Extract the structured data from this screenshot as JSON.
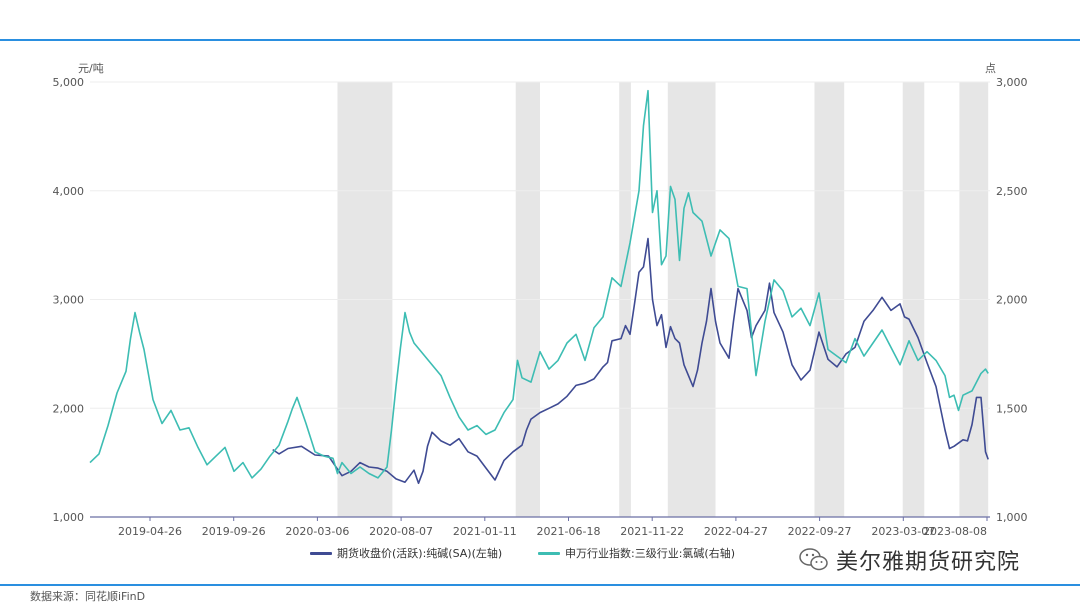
{
  "chart_data": {
    "type": "line",
    "title": "",
    "left_axis_unit": "元/吨",
    "right_axis_unit": "点",
    "left_ylim": [
      1000,
      5000
    ],
    "right_ylim": [
      1000,
      3000
    ],
    "left_yticks": [
      "1,000",
      "2,000",
      "3,000",
      "4,000",
      "5,000"
    ],
    "right_yticks": [
      "1,000",
      "1,500",
      "2,000",
      "2,500",
      "3,000"
    ],
    "x_tick_labels": [
      "2019-04-26",
      "2019-09-26",
      "2020-03-06",
      "2020-08-07",
      "2021-01-11",
      "2021-06-18",
      "2021-11-22",
      "2022-04-27",
      "2022-09-27",
      "2023-03-07",
      "2023-08-08"
    ],
    "x_range": [
      0,
      1
    ],
    "shaded_periods": [
      [
        0.275,
        0.336
      ],
      [
        0.473,
        0.5
      ],
      [
        0.588,
        0.601
      ],
      [
        0.642,
        0.695
      ],
      [
        0.805,
        0.838
      ],
      [
        0.903,
        0.927
      ],
      [
        0.966,
        0.998
      ]
    ],
    "grid": true,
    "series": [
      {
        "name": "期货收盘价(活跃):纯碱(SA)(左轴)",
        "axis": "left",
        "color": "#3f4b93",
        "points": [
          [
            0.203,
            1620
          ],
          [
            0.21,
            1580
          ],
          [
            0.22,
            1630
          ],
          [
            0.235,
            1650
          ],
          [
            0.25,
            1570
          ],
          [
            0.265,
            1560
          ],
          [
            0.28,
            1380
          ],
          [
            0.29,
            1420
          ],
          [
            0.3,
            1500
          ],
          [
            0.31,
            1460
          ],
          [
            0.32,
            1450
          ],
          [
            0.33,
            1420
          ],
          [
            0.34,
            1350
          ],
          [
            0.35,
            1320
          ],
          [
            0.36,
            1430
          ],
          [
            0.365,
            1310
          ],
          [
            0.37,
            1420
          ],
          [
            0.375,
            1650
          ],
          [
            0.38,
            1780
          ],
          [
            0.39,
            1700
          ],
          [
            0.4,
            1660
          ],
          [
            0.41,
            1720
          ],
          [
            0.42,
            1600
          ],
          [
            0.43,
            1560
          ],
          [
            0.44,
            1450
          ],
          [
            0.45,
            1340
          ],
          [
            0.46,
            1520
          ],
          [
            0.47,
            1600
          ],
          [
            0.48,
            1660
          ],
          [
            0.485,
            1800
          ],
          [
            0.49,
            1900
          ],
          [
            0.5,
            1960
          ],
          [
            0.51,
            2000
          ],
          [
            0.52,
            2040
          ],
          [
            0.53,
            2110
          ],
          [
            0.54,
            2210
          ],
          [
            0.55,
            2230
          ],
          [
            0.56,
            2270
          ],
          [
            0.57,
            2380
          ],
          [
            0.575,
            2420
          ],
          [
            0.58,
            2620
          ],
          [
            0.59,
            2640
          ],
          [
            0.595,
            2760
          ],
          [
            0.6,
            2680
          ],
          [
            0.605,
            2960
          ],
          [
            0.61,
            3250
          ],
          [
            0.615,
            3300
          ],
          [
            0.62,
            3560
          ],
          [
            0.625,
            3000
          ],
          [
            0.63,
            2760
          ],
          [
            0.635,
            2860
          ],
          [
            0.64,
            2560
          ],
          [
            0.645,
            2750
          ],
          [
            0.65,
            2640
          ],
          [
            0.655,
            2600
          ],
          [
            0.66,
            2400
          ],
          [
            0.67,
            2200
          ],
          [
            0.675,
            2350
          ],
          [
            0.68,
            2600
          ],
          [
            0.685,
            2800
          ],
          [
            0.69,
            3100
          ],
          [
            0.695,
            2800
          ],
          [
            0.7,
            2600
          ],
          [
            0.71,
            2460
          ],
          [
            0.715,
            2800
          ],
          [
            0.72,
            3100
          ],
          [
            0.73,
            2900
          ],
          [
            0.735,
            2650
          ],
          [
            0.74,
            2760
          ],
          [
            0.75,
            2900
          ],
          [
            0.755,
            3150
          ],
          [
            0.76,
            2880
          ],
          [
            0.77,
            2700
          ],
          [
            0.78,
            2400
          ],
          [
            0.79,
            2260
          ],
          [
            0.8,
            2350
          ],
          [
            0.81,
            2700
          ],
          [
            0.82,
            2450
          ],
          [
            0.83,
            2380
          ],
          [
            0.84,
            2500
          ],
          [
            0.85,
            2560
          ],
          [
            0.86,
            2800
          ],
          [
            0.87,
            2900
          ],
          [
            0.88,
            3020
          ],
          [
            0.89,
            2900
          ],
          [
            0.9,
            2960
          ],
          [
            0.905,
            2840
          ],
          [
            0.91,
            2820
          ],
          [
            0.92,
            2650
          ],
          [
            0.93,
            2420
          ],
          [
            0.94,
            2200
          ],
          [
            0.95,
            1800
          ],
          [
            0.955,
            1630
          ],
          [
            0.96,
            1650
          ],
          [
            0.97,
            1710
          ],
          [
            0.975,
            1700
          ],
          [
            0.98,
            1850
          ],
          [
            0.985,
            2100
          ],
          [
            0.99,
            2100
          ],
          [
            0.995,
            1600
          ],
          [
            0.998,
            1530
          ]
        ]
      },
      {
        "name": "申万行业指数:三级行业:氯碱(右轴)",
        "axis": "right",
        "color": "#3dbdb3",
        "points": [
          [
            0.0,
            1250
          ],
          [
            0.01,
            1290
          ],
          [
            0.02,
            1420
          ],
          [
            0.03,
            1570
          ],
          [
            0.04,
            1670
          ],
          [
            0.045,
            1820
          ],
          [
            0.05,
            1940
          ],
          [
            0.055,
            1850
          ],
          [
            0.06,
            1770
          ],
          [
            0.07,
            1540
          ],
          [
            0.08,
            1430
          ],
          [
            0.09,
            1490
          ],
          [
            0.1,
            1400
          ],
          [
            0.11,
            1410
          ],
          [
            0.12,
            1320
          ],
          [
            0.13,
            1240
          ],
          [
            0.14,
            1280
          ],
          [
            0.15,
            1320
          ],
          [
            0.16,
            1210
          ],
          [
            0.17,
            1250
          ],
          [
            0.18,
            1180
          ],
          [
            0.19,
            1220
          ],
          [
            0.2,
            1280
          ],
          [
            0.21,
            1330
          ],
          [
            0.22,
            1440
          ],
          [
            0.225,
            1500
          ],
          [
            0.23,
            1550
          ],
          [
            0.24,
            1430
          ],
          [
            0.25,
            1300
          ],
          [
            0.26,
            1280
          ],
          [
            0.27,
            1270
          ],
          [
            0.275,
            1200
          ],
          [
            0.28,
            1250
          ],
          [
            0.29,
            1200
          ],
          [
            0.3,
            1230
          ],
          [
            0.31,
            1200
          ],
          [
            0.32,
            1180
          ],
          [
            0.33,
            1230
          ],
          [
            0.335,
            1400
          ],
          [
            0.34,
            1600
          ],
          [
            0.345,
            1780
          ],
          [
            0.35,
            1940
          ],
          [
            0.355,
            1850
          ],
          [
            0.36,
            1800
          ],
          [
            0.37,
            1750
          ],
          [
            0.38,
            1700
          ],
          [
            0.39,
            1650
          ],
          [
            0.4,
            1550
          ],
          [
            0.41,
            1460
          ],
          [
            0.42,
            1400
          ],
          [
            0.43,
            1420
          ],
          [
            0.44,
            1380
          ],
          [
            0.45,
            1400
          ],
          [
            0.46,
            1480
          ],
          [
            0.47,
            1540
          ],
          [
            0.475,
            1720
          ],
          [
            0.48,
            1640
          ],
          [
            0.49,
            1620
          ],
          [
            0.5,
            1760
          ],
          [
            0.51,
            1680
          ],
          [
            0.52,
            1720
          ],
          [
            0.53,
            1800
          ],
          [
            0.54,
            1840
          ],
          [
            0.55,
            1720
          ],
          [
            0.56,
            1870
          ],
          [
            0.57,
            1920
          ],
          [
            0.58,
            2100
          ],
          [
            0.59,
            2060
          ],
          [
            0.6,
            2260
          ],
          [
            0.61,
            2500
          ],
          [
            0.615,
            2800
          ],
          [
            0.62,
            2960
          ],
          [
            0.625,
            2400
          ],
          [
            0.63,
            2500
          ],
          [
            0.635,
            2160
          ],
          [
            0.64,
            2200
          ],
          [
            0.645,
            2520
          ],
          [
            0.65,
            2460
          ],
          [
            0.655,
            2180
          ],
          [
            0.66,
            2420
          ],
          [
            0.665,
            2490
          ],
          [
            0.67,
            2400
          ],
          [
            0.68,
            2360
          ],
          [
            0.69,
            2200
          ],
          [
            0.7,
            2320
          ],
          [
            0.71,
            2280
          ],
          [
            0.72,
            2060
          ],
          [
            0.73,
            2050
          ],
          [
            0.74,
            1650
          ],
          [
            0.75,
            1900
          ],
          [
            0.76,
            2090
          ],
          [
            0.77,
            2040
          ],
          [
            0.78,
            1920
          ],
          [
            0.79,
            1960
          ],
          [
            0.8,
            1880
          ],
          [
            0.81,
            2030
          ],
          [
            0.82,
            1770
          ],
          [
            0.83,
            1740
          ],
          [
            0.84,
            1710
          ],
          [
            0.85,
            1820
          ],
          [
            0.86,
            1740
          ],
          [
            0.87,
            1800
          ],
          [
            0.88,
            1860
          ],
          [
            0.89,
            1780
          ],
          [
            0.9,
            1700
          ],
          [
            0.91,
            1810
          ],
          [
            0.92,
            1720
          ],
          [
            0.93,
            1760
          ],
          [
            0.94,
            1720
          ],
          [
            0.95,
            1650
          ],
          [
            0.955,
            1550
          ],
          [
            0.96,
            1560
          ],
          [
            0.965,
            1490
          ],
          [
            0.97,
            1560
          ],
          [
            0.98,
            1580
          ],
          [
            0.99,
            1660
          ],
          [
            0.995,
            1680
          ],
          [
            0.998,
            1660
          ]
        ]
      }
    ],
    "legend_position": "bottom"
  },
  "source": "数据来源：同花顺iFinD",
  "watermark": {
    "text": "美尔雅期货研究院",
    "icon": "wechat-icon"
  },
  "colors": {
    "rule": "#2a8fe0",
    "shade": "#e6e6e6",
    "grid": "#eeeeee"
  }
}
